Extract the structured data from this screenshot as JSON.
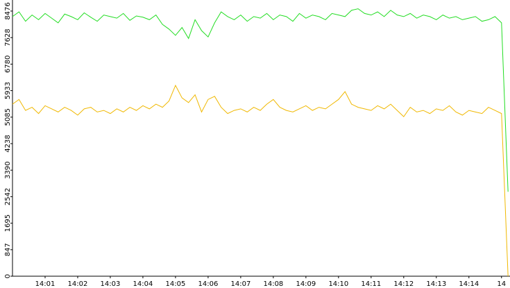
{
  "chart_data": {
    "type": "line",
    "x": [
      840.0,
      840.2,
      840.4,
      840.6,
      840.8,
      841.0,
      841.2,
      841.4,
      841.6,
      841.8,
      842.0,
      842.2,
      842.4,
      842.6,
      842.8,
      843.0,
      843.2,
      843.4,
      843.6,
      843.8,
      844.0,
      844.2,
      844.4,
      844.6,
      844.8,
      845.0,
      845.2,
      845.4,
      845.6,
      845.8,
      846.0,
      846.2,
      846.4,
      846.6,
      846.8,
      847.0,
      847.2,
      847.4,
      847.6,
      847.8,
      848.0,
      848.2,
      848.4,
      848.6,
      848.8,
      849.0,
      849.2,
      849.4,
      849.6,
      849.8,
      850.0,
      850.2,
      850.4,
      850.6,
      850.8,
      851.0,
      851.2,
      851.4,
      851.6,
      851.8,
      852.0,
      852.2,
      852.4,
      852.6,
      852.8,
      853.0,
      853.2,
      853.4,
      853.6,
      853.8,
      854.0,
      854.2,
      854.4,
      854.6,
      854.8,
      855.0,
      855.2
    ],
    "series": [
      {
        "color": "#22dd22",
        "values": [
          8300,
          8450,
          8150,
          8350,
          8200,
          8400,
          8250,
          8100,
          8380,
          8300,
          8200,
          8420,
          8280,
          8150,
          8350,
          8300,
          8250,
          8400,
          8180,
          8320,
          8280,
          8200,
          8350,
          8050,
          7900,
          7700,
          7950,
          7600,
          8200,
          7850,
          7650,
          8100,
          8450,
          8300,
          8200,
          8350,
          8150,
          8300,
          8250,
          8400,
          8200,
          8350,
          8300,
          8150,
          8400,
          8250,
          8350,
          8300,
          8200,
          8400,
          8350,
          8300,
          8500,
          8550,
          8400,
          8350,
          8450,
          8300,
          8500,
          8350,
          8300,
          8400,
          8250,
          8350,
          8300,
          8200,
          8350,
          8250,
          8300,
          8200,
          8250,
          8300,
          8150,
          8200,
          8300,
          8100,
          2700
        ]
      },
      {
        "color": "#f0b800",
        "values": [
          5500,
          5650,
          5300,
          5400,
          5200,
          5450,
          5350,
          5250,
          5400,
          5300,
          5150,
          5350,
          5400,
          5250,
          5300,
          5200,
          5350,
          5250,
          5400,
          5300,
          5450,
          5350,
          5500,
          5400,
          5600,
          6100,
          5700,
          5550,
          5800,
          5250,
          5650,
          5750,
          5400,
          5200,
          5300,
          5350,
          5250,
          5400,
          5300,
          5500,
          5650,
          5400,
          5300,
          5250,
          5350,
          5450,
          5300,
          5400,
          5350,
          5500,
          5650,
          5900,
          5500,
          5400,
          5350,
          5300,
          5450,
          5350,
          5500,
          5300,
          5100,
          5400,
          5250,
          5300,
          5200,
          5350,
          5300,
          5450,
          5250,
          5150,
          5300,
          5250,
          5200,
          5400,
          5300,
          5200,
          0
        ]
      }
    ],
    "xlim": [
      840,
      855.26
    ],
    "xticks": [
      {
        "value": 841,
        "label": "14:01"
      },
      {
        "value": 842,
        "label": "14:02"
      },
      {
        "value": 843,
        "label": "14:03"
      },
      {
        "value": 844,
        "label": "14:04"
      },
      {
        "value": 845,
        "label": "14:05"
      },
      {
        "value": 846,
        "label": "14:06"
      },
      {
        "value": 847,
        "label": "14:07"
      },
      {
        "value": 848,
        "label": "14:08"
      },
      {
        "value": 849,
        "label": "14:09"
      },
      {
        "value": 850,
        "label": "14:10"
      },
      {
        "value": 851,
        "label": "14:11"
      },
      {
        "value": 852,
        "label": "14:12"
      },
      {
        "value": 853,
        "label": "14:13"
      },
      {
        "value": 854,
        "label": "14:14"
      },
      {
        "value": 855,
        "label": "14"
      }
    ],
    "ylim": [
      0,
      8830
    ],
    "yticks": [
      0,
      847,
      1695,
      2542,
      3390,
      4238,
      5085,
      5933,
      6780,
      7628,
      8476
    ]
  }
}
